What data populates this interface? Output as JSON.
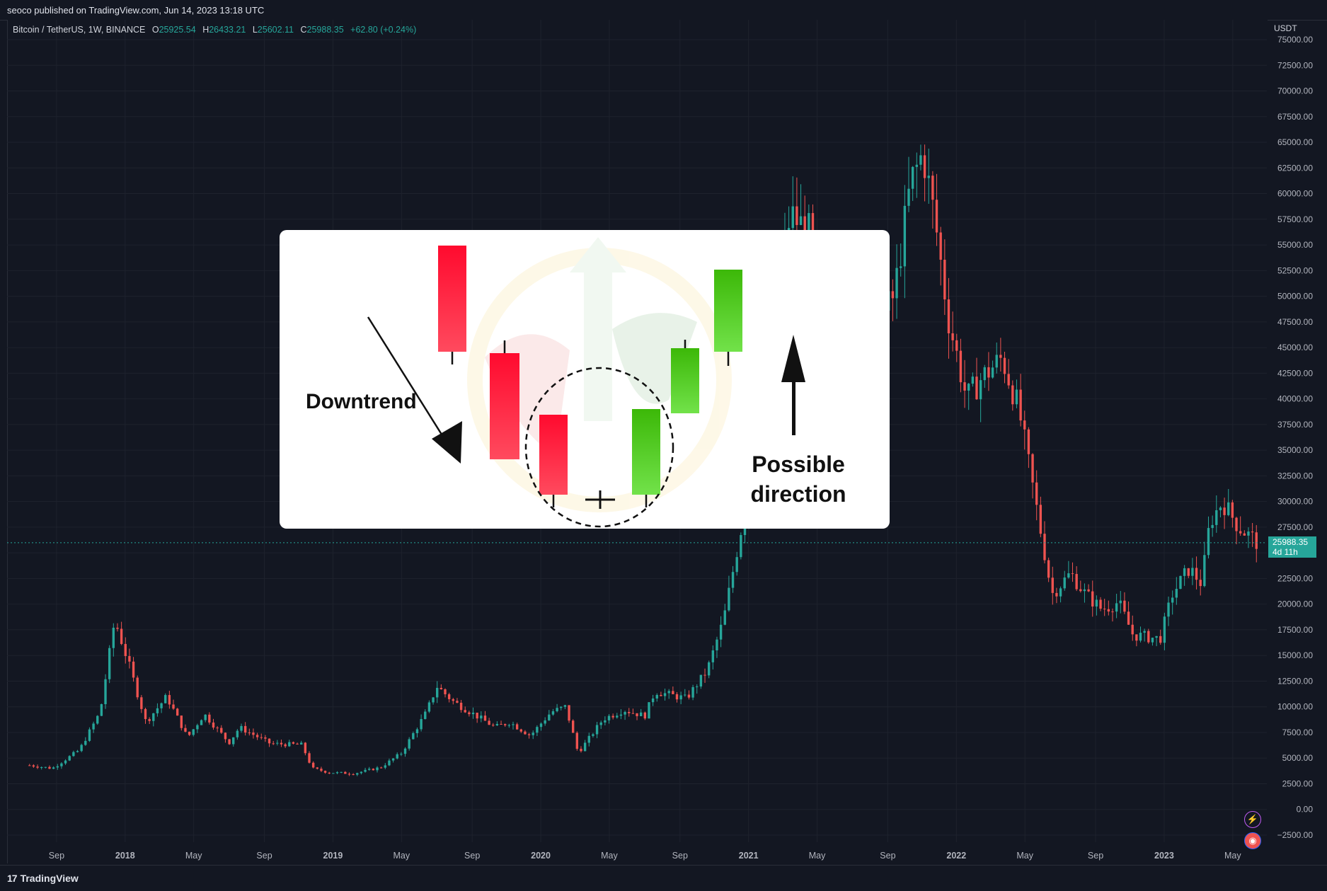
{
  "header": {
    "published": "seoco published on TradingView.com, Jun 14, 2023 13:18 UTC"
  },
  "legend": {
    "symbol": "Bitcoin / TetherUS, 1W, BINANCE",
    "o_label": "O",
    "o": "25925.54",
    "h_label": "H",
    "h": "26433.21",
    "l_label": "L",
    "l": "25602.11",
    "c_label": "C",
    "c": "25988.35",
    "change": "+62.80 (+0.24%)"
  },
  "price_axis": {
    "currency": "USDT",
    "current_price": "25988.35",
    "countdown": "4d 11h"
  },
  "footer": {
    "brand": "TradingView",
    "brand_mark": "17"
  },
  "colors": {
    "up": "#26a69a",
    "down": "#ef5350",
    "bg": "#131722",
    "grid": "#1e222d"
  },
  "chart_data": {
    "type": "candlestick",
    "xlabel": "",
    "ylabel": "",
    "ylim": [
      -2500,
      75000
    ],
    "y_ticks": [
      75000,
      72500,
      70000,
      67500,
      65000,
      62500,
      60000,
      57500,
      55000,
      52500,
      50000,
      47500,
      45000,
      42500,
      40000,
      37500,
      35000,
      32500,
      30000,
      27500,
      25000,
      22500,
      20000,
      17500,
      15000,
      12500,
      10000,
      7500,
      5000,
      2500,
      0,
      -2500
    ],
    "y_tick_labels": [
      "75000.00",
      "72500.00",
      "70000.00",
      "67500.00",
      "65000.00",
      "62500.00",
      "60000.00",
      "57500.00",
      "55000.00",
      "52500.00",
      "50000.00",
      "47500.00",
      "45000.00",
      "42500.00",
      "40000.00",
      "37500.00",
      "35000.00",
      "32500.00",
      "30000.00",
      "27500.00",
      "25000.00",
      "22500.00",
      "20000.00",
      "17500.00",
      "15000.00",
      "12500.00",
      "10000.00",
      "7500.00",
      "5000.00",
      "2500.00",
      "0.00",
      "−2500.00"
    ],
    "x_ticks": [
      {
        "label": "Sep",
        "t": 2017.67,
        "bold": false
      },
      {
        "label": "2018",
        "t": 2018.0,
        "bold": true
      },
      {
        "label": "May",
        "t": 2018.33,
        "bold": false
      },
      {
        "label": "Sep",
        "t": 2018.67,
        "bold": false
      },
      {
        "label": "2019",
        "t": 2019.0,
        "bold": true
      },
      {
        "label": "May",
        "t": 2019.33,
        "bold": false
      },
      {
        "label": "Sep",
        "t": 2019.67,
        "bold": false
      },
      {
        "label": "2020",
        "t": 2020.0,
        "bold": true
      },
      {
        "label": "May",
        "t": 2020.33,
        "bold": false
      },
      {
        "label": "Sep",
        "t": 2020.67,
        "bold": false
      },
      {
        "label": "2021",
        "t": 2021.0,
        "bold": true
      },
      {
        "label": "May",
        "t": 2021.33,
        "bold": false
      },
      {
        "label": "Sep",
        "t": 2021.67,
        "bold": false
      },
      {
        "label": "2022",
        "t": 2022.0,
        "bold": true
      },
      {
        "label": "May",
        "t": 2022.33,
        "bold": false
      },
      {
        "label": "Sep",
        "t": 2022.67,
        "bold": false
      },
      {
        "label": "2023",
        "t": 2023.0,
        "bold": true
      },
      {
        "label": "May",
        "t": 2023.33,
        "bold": false
      }
    ],
    "xlim": [
      2017.5,
      2023.46
    ],
    "keyframes": [
      [
        2017.54,
        4300
      ],
      [
        2017.65,
        4000
      ],
      [
        2017.78,
        5800
      ],
      [
        2017.88,
        9500
      ],
      [
        2017.95,
        18500
      ],
      [
        2018.02,
        14000
      ],
      [
        2018.1,
        8500
      ],
      [
        2018.2,
        11000
      ],
      [
        2018.3,
        7000
      ],
      [
        2018.38,
        9300
      ],
      [
        2018.5,
        6500
      ],
      [
        2018.55,
        8000
      ],
      [
        2018.7,
        6400
      ],
      [
        2018.85,
        6300
      ],
      [
        2018.9,
        4000
      ],
      [
        2018.98,
        3600
      ],
      [
        2019.1,
        3500
      ],
      [
        2019.23,
        4100
      ],
      [
        2019.33,
        5500
      ],
      [
        2019.45,
        9500
      ],
      [
        2019.5,
        12000
      ],
      [
        2019.58,
        10500
      ],
      [
        2019.7,
        9000
      ],
      [
        2019.78,
        8000
      ],
      [
        2019.85,
        8500
      ],
      [
        2019.95,
        7200
      ],
      [
        2020.05,
        9500
      ],
      [
        2020.12,
        10000
      ],
      [
        2020.18,
        5500
      ],
      [
        2020.3,
        8800
      ],
      [
        2020.4,
        9700
      ],
      [
        2020.5,
        9100
      ],
      [
        2020.55,
        11500
      ],
      [
        2020.7,
        10800
      ],
      [
        2020.8,
        13500
      ],
      [
        2020.88,
        18500
      ],
      [
        2020.98,
        29000
      ],
      [
        2021.05,
        35000
      ],
      [
        2021.12,
        48000
      ],
      [
        2021.2,
        58000
      ],
      [
        2021.3,
        56000
      ],
      [
        2021.38,
        37000
      ],
      [
        2021.45,
        33000
      ],
      [
        2021.55,
        40000
      ],
      [
        2021.62,
        47000
      ],
      [
        2021.7,
        50000
      ],
      [
        2021.78,
        61000
      ],
      [
        2021.84,
        64000
      ],
      [
        2021.9,
        57000
      ],
      [
        2021.96,
        48000
      ],
      [
        2022.05,
        40000
      ],
      [
        2022.12,
        42000
      ],
      [
        2022.22,
        44000
      ],
      [
        2022.3,
        39000
      ],
      [
        2022.38,
        30000
      ],
      [
        2022.46,
        21000
      ],
      [
        2022.55,
        23000
      ],
      [
        2022.62,
        21000
      ],
      [
        2022.7,
        19500
      ],
      [
        2022.78,
        20200
      ],
      [
        2022.85,
        17000
      ],
      [
        2022.92,
        16800
      ],
      [
        2022.98,
        16600
      ],
      [
        2023.04,
        21000
      ],
      [
        2023.12,
        23500
      ],
      [
        2023.18,
        22000
      ],
      [
        2023.22,
        28000
      ],
      [
        2023.28,
        30000
      ],
      [
        2023.36,
        27500
      ],
      [
        2023.45,
        26000
      ]
    ],
    "overlay": {
      "label_left": "Downtrend",
      "label_right_1": "Possible",
      "label_right_2": "direction"
    }
  }
}
